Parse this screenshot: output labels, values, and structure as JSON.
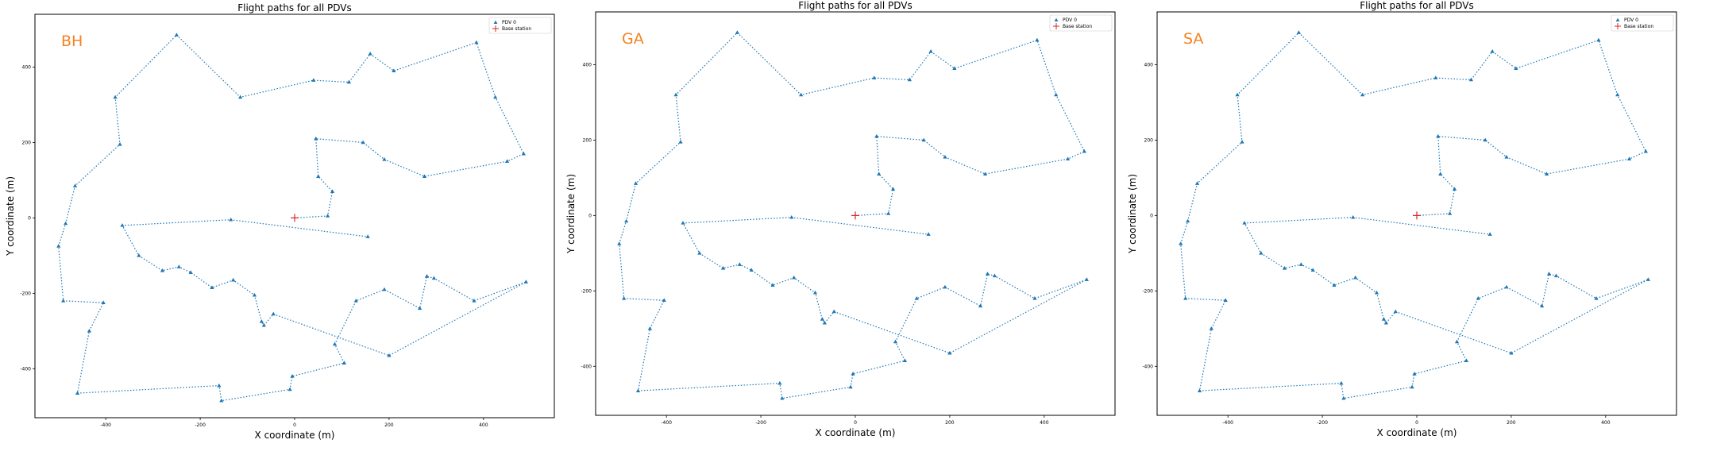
{
  "figure": {
    "panels": [
      {
        "panel_label": "BH"
      },
      {
        "panel_label": "GA"
      },
      {
        "panel_label": "SA"
      }
    ]
  },
  "colors": {
    "path": "#1f77b4",
    "base_station": "#d62728",
    "panel_label": "#f5821f",
    "axes": "#000000"
  },
  "chart_data": [
    {
      "type": "line",
      "title": "Flight paths for all PDVs",
      "xlabel": "X coordinate (m)",
      "ylabel": "Y coordinate (m)",
      "xlim": [
        -550,
        550
      ],
      "ylim": [
        -530,
        540
      ],
      "xticks": [
        -400,
        -200,
        0,
        200,
        400
      ],
      "yticks": [
        -400,
        -200,
        0,
        200,
        400
      ],
      "grid": false,
      "legend_position": "top-right",
      "legend": [
        "PDV 0",
        "Base station"
      ],
      "series": [
        {
          "name": "PDV 0",
          "points": [
            [
              0,
              0
            ],
            [
              70,
              5
            ],
            [
              80,
              70
            ],
            [
              50,
              110
            ],
            [
              45,
              210
            ],
            [
              145,
              200
            ],
            [
              190,
              155
            ],
            [
              275,
              110
            ],
            [
              450,
              150
            ],
            [
              485,
              170
            ],
            [
              425,
              320
            ],
            [
              385,
              465
            ],
            [
              210,
              390
            ],
            [
              160,
              435
            ],
            [
              115,
              360
            ],
            [
              40,
              365
            ],
            [
              -115,
              320
            ],
            [
              -250,
              485
            ],
            [
              -380,
              320
            ],
            [
              -370,
              195
            ],
            [
              -465,
              85
            ],
            [
              -485,
              -15
            ],
            [
              -500,
              -75
            ],
            [
              -490,
              -220
            ],
            [
              -405,
              -225
            ],
            [
              -435,
              -300
            ],
            [
              -460,
              -465
            ],
            [
              -160,
              -445
            ],
            [
              -155,
              -485
            ],
            [
              -10,
              -455
            ],
            [
              -5,
              -420
            ],
            [
              105,
              -385
            ],
            [
              85,
              -335
            ],
            [
              130,
              -220
            ],
            [
              190,
              -190
            ],
            [
              265,
              -240
            ],
            [
              280,
              -155
            ],
            [
              295,
              -160
            ],
            [
              380,
              -220
            ],
            [
              490,
              -170
            ],
            [
              200,
              -365
            ],
            [
              -45,
              -255
            ],
            [
              -65,
              -285
            ],
            [
              -70,
              -275
            ],
            [
              -85,
              -205
            ],
            [
              -130,
              -165
            ],
            [
              -175,
              -185
            ],
            [
              -220,
              -145
            ],
            [
              -245,
              -130
            ],
            [
              -280,
              -140
            ],
            [
              -330,
              -100
            ],
            [
              -365,
              -20
            ],
            [
              -135,
              -5
            ],
            [
              155,
              -50
            ]
          ]
        },
        {
          "name": "Base station",
          "points": [
            [
              0,
              0
            ]
          ]
        }
      ]
    },
    {
      "type": "line",
      "title": "Flight paths for all PDVs",
      "xlabel": "X coordinate (m)",
      "ylabel": "Y coordinate (m)",
      "xlim": [
        -550,
        550
      ],
      "ylim": [
        -530,
        540
      ],
      "xticks": [
        -400,
        -200,
        0,
        200,
        400
      ],
      "yticks": [
        -400,
        -200,
        0,
        200,
        400
      ],
      "grid": false,
      "legend_position": "top-right",
      "legend": [
        "PDV 0",
        "Base station"
      ],
      "series": [
        {
          "name": "PDV 0",
          "points": [
            [
              0,
              0
            ],
            [
              70,
              5
            ],
            [
              80,
              70
            ],
            [
              50,
              110
            ],
            [
              45,
              210
            ],
            [
              145,
              200
            ],
            [
              190,
              155
            ],
            [
              275,
              110
            ],
            [
              450,
              150
            ],
            [
              485,
              170
            ],
            [
              425,
              320
            ],
            [
              385,
              465
            ],
            [
              210,
              390
            ],
            [
              160,
              435
            ],
            [
              115,
              360
            ],
            [
              40,
              365
            ],
            [
              -115,
              320
            ],
            [
              -250,
              485
            ],
            [
              -380,
              320
            ],
            [
              -370,
              195
            ],
            [
              -465,
              85
            ],
            [
              -485,
              -15
            ],
            [
              -500,
              -75
            ],
            [
              -490,
              -220
            ],
            [
              -405,
              -225
            ],
            [
              -435,
              -300
            ],
            [
              -460,
              -465
            ],
            [
              -160,
              -445
            ],
            [
              -155,
              -485
            ],
            [
              -10,
              -455
            ],
            [
              -5,
              -420
            ],
            [
              105,
              -385
            ],
            [
              85,
              -335
            ],
            [
              130,
              -220
            ],
            [
              190,
              -190
            ],
            [
              265,
              -240
            ],
            [
              280,
              -155
            ],
            [
              295,
              -160
            ],
            [
              380,
              -220
            ],
            [
              490,
              -170
            ],
            [
              200,
              -365
            ],
            [
              -45,
              -255
            ],
            [
              -65,
              -285
            ],
            [
              -70,
              -275
            ],
            [
              -85,
              -205
            ],
            [
              -130,
              -165
            ],
            [
              -175,
              -185
            ],
            [
              -220,
              -145
            ],
            [
              -245,
              -130
            ],
            [
              -280,
              -140
            ],
            [
              -330,
              -100
            ],
            [
              -365,
              -20
            ],
            [
              -135,
              -5
            ],
            [
              155,
              -50
            ]
          ]
        },
        {
          "name": "Base station",
          "points": [
            [
              0,
              0
            ]
          ]
        }
      ]
    },
    {
      "type": "line",
      "title": "Flight paths for all PDVs",
      "xlabel": "X coordinate (m)",
      "ylabel": "Y coordinate (m)",
      "xlim": [
        -550,
        550
      ],
      "ylim": [
        -530,
        540
      ],
      "xticks": [
        -400,
        -200,
        0,
        200,
        400
      ],
      "yticks": [
        -400,
        -200,
        0,
        200,
        400
      ],
      "grid": false,
      "legend_position": "top-right",
      "legend": [
        "PDV 0",
        "Base station"
      ],
      "series": [
        {
          "name": "PDV 0",
          "points": [
            [
              0,
              0
            ],
            [
              70,
              5
            ],
            [
              80,
              70
            ],
            [
              50,
              110
            ],
            [
              45,
              210
            ],
            [
              145,
              200
            ],
            [
              190,
              155
            ],
            [
              275,
              110
            ],
            [
              450,
              150
            ],
            [
              485,
              170
            ],
            [
              425,
              320
            ],
            [
              385,
              465
            ],
            [
              210,
              390
            ],
            [
              160,
              435
            ],
            [
              115,
              360
            ],
            [
              40,
              365
            ],
            [
              -115,
              320
            ],
            [
              -250,
              485
            ],
            [
              -380,
              320
            ],
            [
              -370,
              195
            ],
            [
              -465,
              85
            ],
            [
              -485,
              -15
            ],
            [
              -500,
              -75
            ],
            [
              -490,
              -220
            ],
            [
              -405,
              -225
            ],
            [
              -435,
              -300
            ],
            [
              -460,
              -465
            ],
            [
              -160,
              -445
            ],
            [
              -155,
              -485
            ],
            [
              -10,
              -455
            ],
            [
              -5,
              -420
            ],
            [
              105,
              -385
            ],
            [
              85,
              -335
            ],
            [
              130,
              -220
            ],
            [
              190,
              -190
            ],
            [
              265,
              -240
            ],
            [
              280,
              -155
            ],
            [
              295,
              -160
            ],
            [
              380,
              -220
            ],
            [
              490,
              -170
            ],
            [
              200,
              -365
            ],
            [
              -45,
              -255
            ],
            [
              -65,
              -285
            ],
            [
              -70,
              -275
            ],
            [
              -85,
              -205
            ],
            [
              -130,
              -165
            ],
            [
              -175,
              -185
            ],
            [
              -220,
              -145
            ],
            [
              -245,
              -130
            ],
            [
              -280,
              -140
            ],
            [
              -330,
              -100
            ],
            [
              -365,
              -20
            ],
            [
              -135,
              -5
            ],
            [
              155,
              -50
            ]
          ]
        },
        {
          "name": "Base station",
          "points": [
            [
              0,
              0
            ]
          ]
        }
      ]
    }
  ]
}
